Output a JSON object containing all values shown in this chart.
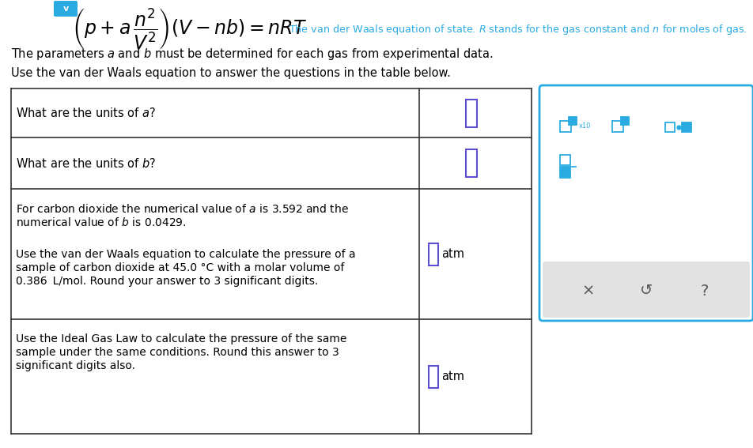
{
  "bg_color": "#ffffff",
  "equation_color": "#000000",
  "desc_color": "#29abe2",
  "text_color": "#000000",
  "table_border_color": "#333333",
  "input_box_color": "#5b4fcf",
  "calculator_border_color": "#29abe2",
  "fig_width": 9.52,
  "fig_height": 5.67,
  "desc_text": "The van der Waals equation of state. $R$ stands for the gas constant and $n$ for moles of gas.",
  "param_line": "The parameters $a$ and $b$ must be determined for each gas from experimental data.",
  "use_line": "Use the van der Waals equation to answer the questions in the table below.",
  "row1_question": "What are the units of $a$?",
  "row2_question": "What are the units of $b$?",
  "atm_label": "atm"
}
